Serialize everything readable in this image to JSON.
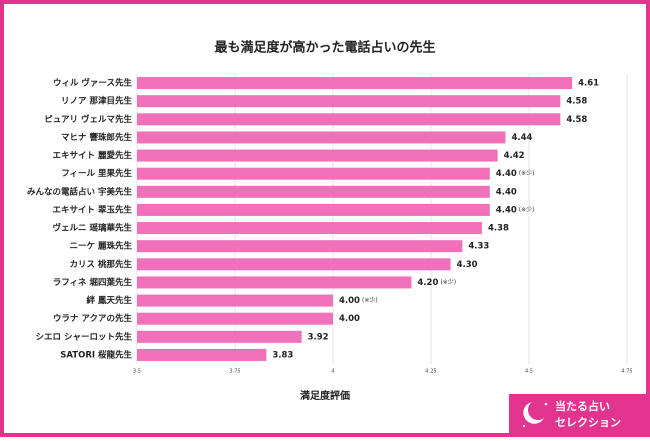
{
  "chart_data": {
    "type": "bar",
    "orientation": "horizontal",
    "title": "最も満足度が高かった電話占いの先生",
    "categories": [
      "ウィル ヴァース先生",
      "リノア 那津目先生",
      "ピュアリ ヴェルマ先生",
      "マヒナ 響珠郎先生",
      "エキサイト 麗愛先生",
      "フィール 里果先生",
      "みんなの電話占い 宇美先生",
      "エキサイト 翠玉先生",
      "ヴェルニ 瑶璃華先生",
      "ニーケ 麗珠先生",
      "カリス 桃那先生",
      "ラフィネ 堀四葉先生",
      "絆 鳳天先生",
      "ウラナ アクアの先生",
      "シエロ シャーロット先生",
      "SATORI 桜龍先生"
    ],
    "values": [
      4.61,
      4.58,
      4.58,
      4.44,
      4.42,
      4.4,
      4.4,
      4.4,
      4.38,
      4.33,
      4.3,
      4.2,
      4.0,
      4.0,
      3.92,
      3.83
    ],
    "value_labels": [
      "4.61",
      "4.58",
      "4.58",
      "4.44",
      "4.42",
      "4.40",
      "4.40",
      "4.40",
      "4.38",
      "4.33",
      "4.30",
      "4.20",
      "4.00",
      "4.00",
      "3.92",
      "3.83"
    ],
    "notes": [
      null,
      null,
      null,
      null,
      null,
      "(※少)",
      null,
      "(※少)",
      null,
      null,
      null,
      "(※少)",
      "(※少)",
      null,
      null,
      null
    ],
    "color": "#f070ba",
    "xlim": [
      3.5,
      4.75
    ],
    "xticks": [
      3.5,
      3.75,
      4,
      4.25,
      4.5,
      4.75
    ],
    "grid": true,
    "x_label": "満足度評価"
  },
  "logo": {
    "line1": "当たる占い",
    "line2": "セレクション"
  }
}
